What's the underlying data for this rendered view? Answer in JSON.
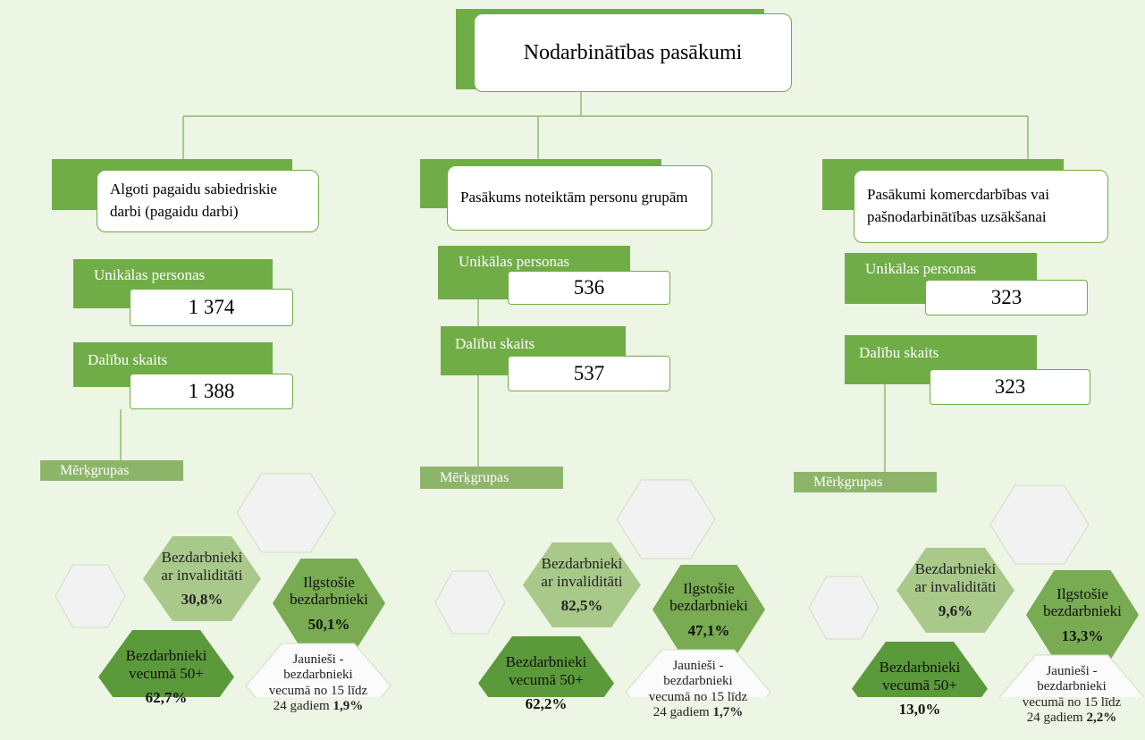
{
  "title": "Nodarbinātības pasākumi",
  "columns": [
    {
      "title": "Algoti pagaidu sabiedriskie darbi (pagaidu darbi)",
      "unique_label": "Unikālas personas",
      "unique_value": "1 374",
      "participants_label": "Dalību skaits",
      "participants_value": "1 388",
      "groups_label": "Mērķgrupas",
      "groups": [
        {
          "name": "Bezdarbnieki ar invaliditāti",
          "value": "30,8%"
        },
        {
          "name": "Ilgstošie bezdarbnieki",
          "value": "50,1%"
        },
        {
          "name": "Bezdarbnieki vecumā 50+",
          "value": "62,7%"
        },
        {
          "name": "Jaunieši - bezdarbnieki vecumā no 15 līdz 24 gadiem",
          "value": "1,9%"
        }
      ]
    },
    {
      "title": "Pasākums noteiktām personu grupām",
      "unique_label": "Unikālas personas",
      "unique_value": "536",
      "participants_label": "Dalību skaits",
      "participants_value": "537",
      "groups_label": "Mērķgrupas",
      "groups": [
        {
          "name": "Bezdarbnieki ar invaliditāti",
          "value": "82,5%"
        },
        {
          "name": "Ilgstošie bezdarbnieki",
          "value": "47,1%"
        },
        {
          "name": "Bezdarbnieki vecumā 50+",
          "value": "62,2%"
        },
        {
          "name": "Jaunieši - bezdarbnieki vecumā no 15 līdz 24 gadiem",
          "value": "1,7%"
        }
      ]
    },
    {
      "title": "Pasākumi komercdarbības vai pašnodarbinātības uzsākšanai",
      "unique_label": "Unikālas personas",
      "unique_value": "323",
      "participants_label": "Dalību skaits",
      "participants_value": "323",
      "groups_label": "Mērķgrupas",
      "groups": [
        {
          "name": "Bezdarbnieki ar invaliditāti",
          "value": "9,6%"
        },
        {
          "name": "Ilgstošie bezdarbnieki",
          "value": "13,3%"
        },
        {
          "name": "Bezdarbnieki vecumā 50+",
          "value": "13,0%"
        },
        {
          "name": "Jaunieši - bezdarbnieki vecumā no 15 līdz 24 gadiem",
          "value": "2,2%"
        }
      ]
    }
  ]
}
